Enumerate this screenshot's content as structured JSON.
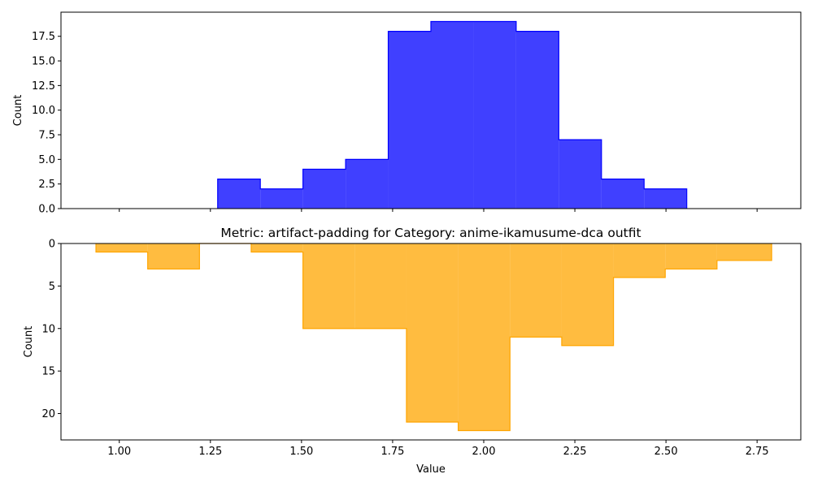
{
  "chart_data": [
    {
      "type": "histogram",
      "title": "",
      "xlabel": "",
      "ylabel": "Count",
      "y_inverted": false,
      "color": "#0000ff",
      "fill_opacity": 0.75,
      "xlim": [
        0.84,
        2.87
      ],
      "ylim": [
        0,
        19.95
      ],
      "yticks": [
        0.0,
        2.5,
        5.0,
        7.5,
        10.0,
        12.5,
        15.0,
        17.5
      ],
      "ytick_labels": [
        "0.0",
        "2.5",
        "5.0",
        "7.5",
        "10.0",
        "12.5",
        "15.0",
        "17.5"
      ],
      "xticks": [
        1.0,
        1.25,
        1.5,
        1.75,
        2.0,
        2.25,
        2.5,
        2.75
      ],
      "show_x_tick_labels": false,
      "bin_edges": [
        1.27,
        1.387,
        1.504,
        1.621,
        1.738,
        1.855,
        1.972,
        2.089,
        2.206,
        2.323,
        2.44,
        2.557
      ],
      "counts": [
        3,
        2,
        4,
        5,
        18,
        19,
        19,
        18,
        7,
        3,
        2
      ]
    },
    {
      "type": "histogram",
      "title": "Metric: artifact-padding for Category: anime-ikamusume-dca outfit",
      "xlabel": "Value",
      "ylabel": "Count",
      "y_inverted": true,
      "color": "#ffa500",
      "fill_opacity": 0.75,
      "xlim": [
        0.84,
        2.87
      ],
      "ylim": [
        0,
        23.1
      ],
      "yticks": [
        0,
        5,
        10,
        15,
        20
      ],
      "ytick_labels": [
        "0",
        "5",
        "10",
        "15",
        "20"
      ],
      "xticks": [
        1.0,
        1.25,
        1.5,
        1.75,
        2.0,
        2.25,
        2.5,
        2.75
      ],
      "xtick_labels": [
        "1.00",
        "1.25",
        "1.50",
        "1.75",
        "2.00",
        "2.25",
        "2.50",
        "2.75"
      ],
      "show_x_tick_labels": true,
      "bin_edges": [
        0.936,
        1.078,
        1.22,
        1.362,
        1.504,
        1.646,
        1.788,
        1.93,
        2.072,
        2.214,
        2.356,
        2.498,
        2.64,
        2.79
      ],
      "counts": [
        1,
        3,
        0,
        1,
        10,
        10,
        21,
        22,
        11,
        12,
        4,
        3,
        2
      ]
    }
  ]
}
